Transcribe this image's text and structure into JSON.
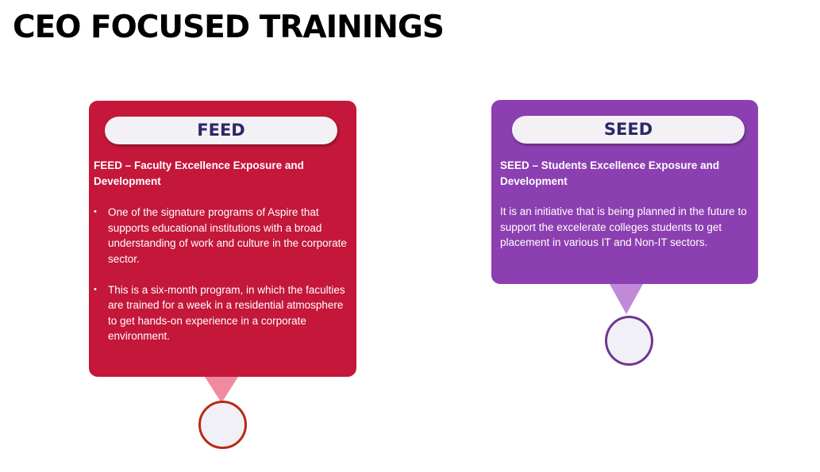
{
  "slide": {
    "title": "CEO FOCUSED TRAININGS"
  },
  "feed": {
    "heading": "FEED",
    "subtitle": "FEED – Faculty Excellence Exposure and Development",
    "bullets": [
      "One of the signature programs of Aspire that supports educational institutions with a broad understanding of work and culture in the corporate sector.",
      "This is a six-month program, in which the faculties are trained for a week in a residential atmosphere to get hands-on experience in a corporate environment."
    ]
  },
  "seed": {
    "heading": "SEED",
    "subtitle": "SEED – Students Excellence Exposure and Development",
    "body": "It is an initiative that is being planned in the future to support the excelerate colleges students to get placement in various IT and Non-IT sectors."
  },
  "colors": {
    "feed_card": "#c4173a",
    "seed_card": "#8c3fb0",
    "pill_text": "#2b2966",
    "feed_pointer": "#f08aa0",
    "seed_pointer": "#c08ad9",
    "feed_ring": "#b72a13",
    "seed_ring": "#6f3590"
  }
}
